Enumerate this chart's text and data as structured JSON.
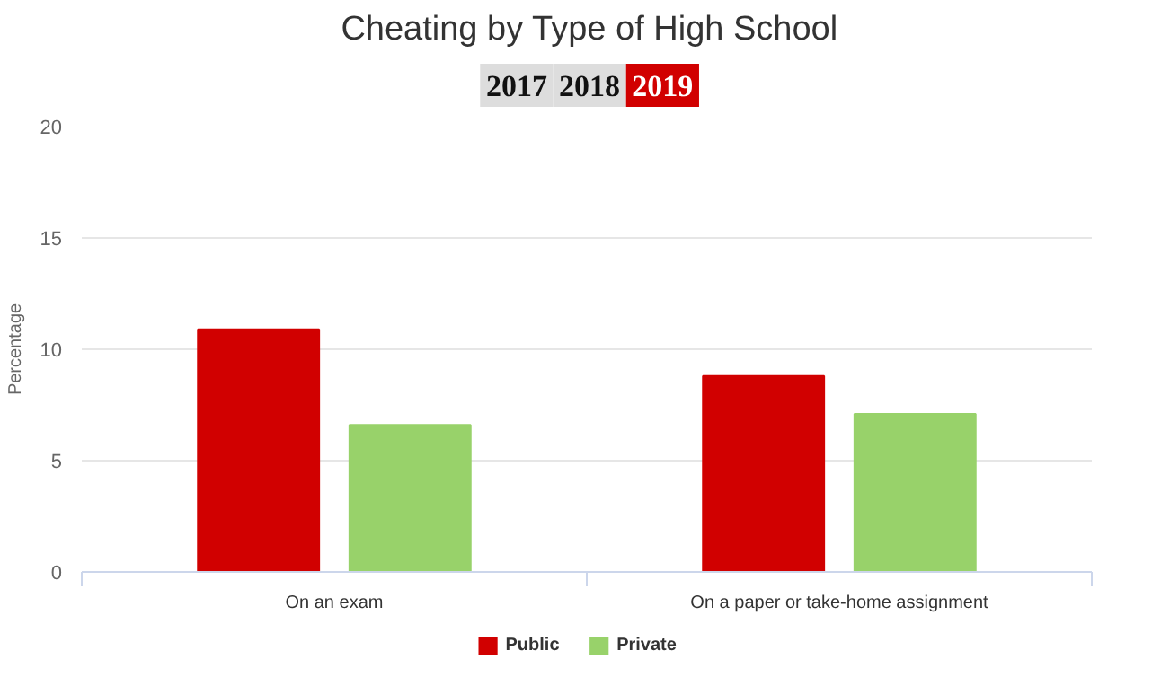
{
  "chart_data": {
    "type": "bar",
    "title": "Cheating by Type of High School",
    "annotations": [
      "2017",
      "2018",
      "2019"
    ],
    "ylabel": "Percentage",
    "categories": [
      "On an exam",
      "On a paper or take-home assignment"
    ],
    "series": [
      {
        "name": "Public",
        "color": "#d10000",
        "values": [
          10.9,
          8.8
        ]
      },
      {
        "name": "Private",
        "color": "#98d26a",
        "values": [
          6.6,
          7.1
        ]
      }
    ],
    "ylim": [
      0,
      20
    ],
    "yticks": [
      0,
      5,
      10,
      15,
      20
    ],
    "grid": "y",
    "legend": "bottom"
  }
}
